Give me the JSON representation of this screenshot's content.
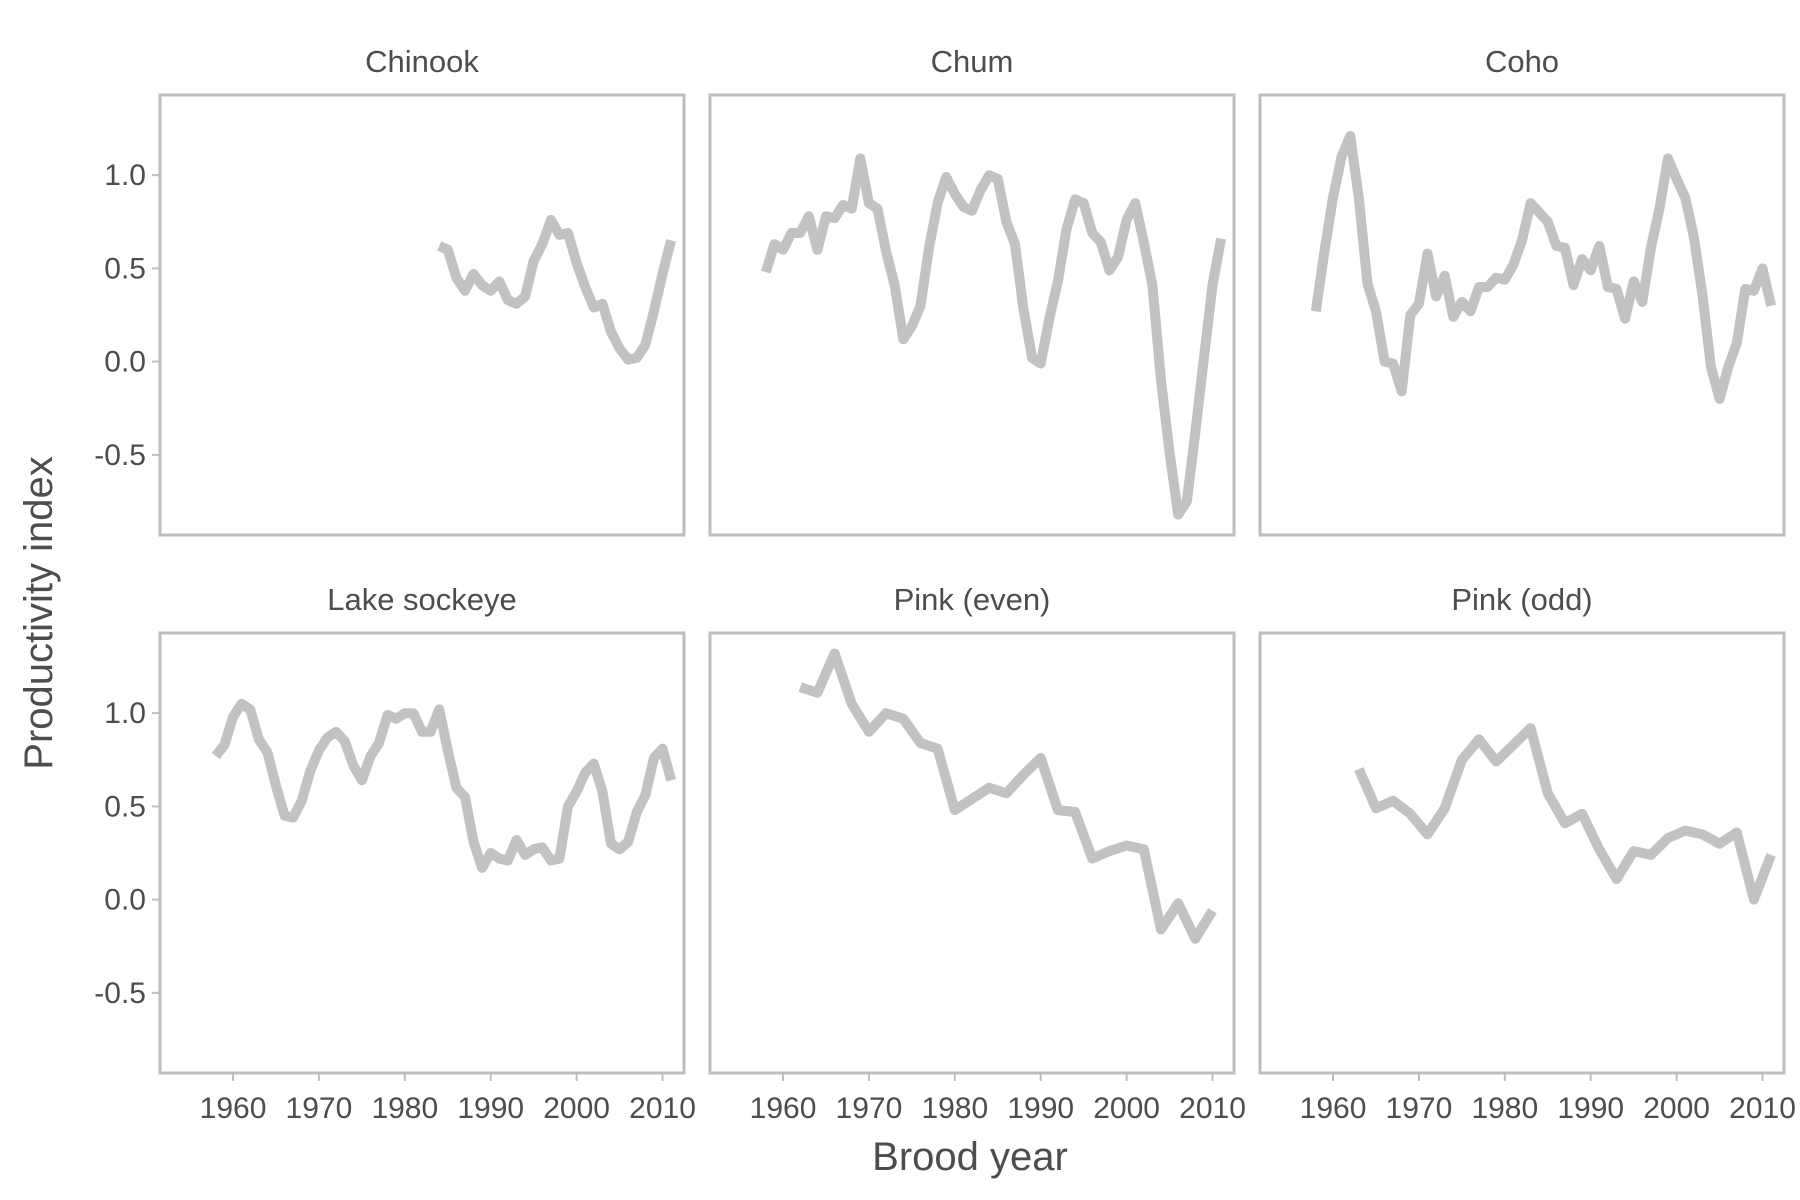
{
  "figure": {
    "xlabel": "Brood year",
    "ylabel": "Productivity index"
  },
  "colors": {
    "line": "#c2c2c2",
    "frame": "#bdbdbd",
    "text": "#4d4d4d"
  },
  "chart_data": [
    {
      "type": "line",
      "title": "Chinook",
      "xlim": [
        1951.5,
        2012.5
      ],
      "ylim": [
        -0.93,
        1.43
      ],
      "xticks": [
        1960,
        1970,
        1980,
        1990,
        2000,
        2010
      ],
      "yticks": [
        -0.5,
        0.0,
        0.5,
        1.0
      ],
      "ytick_labels": [
        "-0.5",
        "0.0",
        "0.5",
        "1.0"
      ],
      "series": [
        {
          "x": [
            1984,
            1985,
            1986,
            1987,
            1988,
            1989,
            1990,
            1991,
            1992,
            1993,
            1994,
            1995,
            1996,
            1997,
            1998,
            1999,
            2000,
            2001,
            2002,
            2003,
            2004,
            2005,
            2006,
            2007,
            2008,
            2009,
            2010,
            2011
          ],
          "y": [
            0.62,
            0.6,
            0.45,
            0.38,
            0.47,
            0.41,
            0.38,
            0.43,
            0.33,
            0.31,
            0.35,
            0.54,
            0.63,
            0.76,
            0.68,
            0.69,
            0.53,
            0.4,
            0.29,
            0.31,
            0.16,
            0.07,
            0.01,
            0.02,
            0.09,
            0.27,
            0.47,
            0.65
          ]
        }
      ]
    },
    {
      "type": "line",
      "title": "Chum",
      "xlim": [
        1951.5,
        2012.5
      ],
      "ylim": [
        -0.93,
        1.43
      ],
      "xticks": [
        1960,
        1970,
        1980,
        1990,
        2000,
        2010
      ],
      "yticks": [
        -0.5,
        0.0,
        0.5,
        1.0
      ],
      "ytick_labels": [
        "-0.5",
        "0.0",
        "0.5",
        "1.0"
      ],
      "series": [
        {
          "x": [
            1958,
            1959,
            1960,
            1961,
            1962,
            1963,
            1964,
            1965,
            1966,
            1967,
            1968,
            1969,
            1970,
            1971,
            1972,
            1973,
            1974,
            1975,
            1976,
            1977,
            1978,
            1979,
            1980,
            1981,
            1982,
            1983,
            1984,
            1985,
            1986,
            1987,
            1988,
            1989,
            1990,
            1991,
            1992,
            1993,
            1994,
            1995,
            1996,
            1997,
            1998,
            1999,
            2000,
            2001,
            2002,
            2003,
            2004,
            2005,
            2006,
            2007,
            2008,
            2009,
            2010,
            2011
          ],
          "y": [
            0.48,
            0.63,
            0.6,
            0.69,
            0.69,
            0.78,
            0.6,
            0.78,
            0.77,
            0.84,
            0.82,
            1.09,
            0.85,
            0.82,
            0.59,
            0.41,
            0.12,
            0.19,
            0.3,
            0.61,
            0.85,
            0.99,
            0.9,
            0.83,
            0.81,
            0.92,
            1.0,
            0.98,
            0.75,
            0.63,
            0.28,
            0.02,
            -0.01,
            0.23,
            0.43,
            0.71,
            0.87,
            0.85,
            0.69,
            0.64,
            0.49,
            0.56,
            0.76,
            0.85,
            0.64,
            0.41,
            -0.1,
            -0.49,
            -0.82,
            -0.75,
            -0.38,
            0.02,
            0.41,
            0.66
          ]
        }
      ]
    },
    {
      "type": "line",
      "title": "Coho",
      "xlim": [
        1951.5,
        2012.5
      ],
      "ylim": [
        -0.93,
        1.43
      ],
      "xticks": [
        1960,
        1970,
        1980,
        1990,
        2000,
        2010
      ],
      "yticks": [
        -0.5,
        0.0,
        0.5,
        1.0
      ],
      "ytick_labels": [
        "-0.5",
        "0.0",
        "0.5",
        "1.0"
      ],
      "series": [
        {
          "x": [
            1958,
            1959,
            1960,
            1961,
            1962,
            1963,
            1964,
            1965,
            1966,
            1967,
            1968,
            1969,
            1970,
            1971,
            1972,
            1973,
            1974,
            1975,
            1976,
            1977,
            1978,
            1979,
            1980,
            1981,
            1982,
            1983,
            1984,
            1985,
            1986,
            1987,
            1988,
            1989,
            1990,
            1991,
            1992,
            1993,
            1994,
            1995,
            1996,
            1997,
            1998,
            1999,
            2000,
            2001,
            2002,
            2003,
            2004,
            2005,
            2006,
            2007,
            2008,
            2009,
            2010,
            2011
          ],
          "y": [
            0.27,
            0.59,
            0.88,
            1.1,
            1.21,
            0.88,
            0.42,
            0.27,
            0.0,
            -0.01,
            -0.16,
            0.25,
            0.31,
            0.58,
            0.35,
            0.46,
            0.24,
            0.32,
            0.27,
            0.4,
            0.4,
            0.45,
            0.44,
            0.52,
            0.65,
            0.85,
            0.8,
            0.75,
            0.62,
            0.61,
            0.41,
            0.55,
            0.49,
            0.62,
            0.4,
            0.39,
            0.23,
            0.43,
            0.32,
            0.61,
            0.82,
            1.09,
            0.98,
            0.88,
            0.67,
            0.36,
            -0.03,
            -0.2,
            -0.03,
            0.1,
            0.39,
            0.38,
            0.5,
            0.3
          ]
        }
      ]
    },
    {
      "type": "line",
      "title": "Lake sockeye",
      "xlim": [
        1951.5,
        2012.5
      ],
      "ylim": [
        -0.93,
        1.43
      ],
      "xticks": [
        1960,
        1970,
        1980,
        1990,
        2000,
        2010
      ],
      "xtick_labels": [
        "1960",
        "1970",
        "1980",
        "1990",
        "2000",
        "2010"
      ],
      "yticks": [
        -0.5,
        0.0,
        0.5,
        1.0
      ],
      "ytick_labels": [
        "-0.5",
        "0.0",
        "0.5",
        "1.0"
      ],
      "series": [
        {
          "x": [
            1958,
            1959,
            1960,
            1961,
            1962,
            1963,
            1964,
            1965,
            1966,
            1967,
            1968,
            1969,
            1970,
            1971,
            1972,
            1973,
            1974,
            1975,
            1976,
            1977,
            1978,
            1979,
            1980,
            1981,
            1982,
            1983,
            1984,
            1985,
            1986,
            1987,
            1988,
            1989,
            1990,
            1991,
            1992,
            1993,
            1994,
            1995,
            1996,
            1997,
            1998,
            1999,
            2000,
            2001,
            2002,
            2003,
            2004,
            2005,
            2006,
            2007,
            2008,
            2009,
            2010,
            2011
          ],
          "y": [
            0.77,
            0.83,
            0.98,
            1.05,
            1.02,
            0.86,
            0.79,
            0.61,
            0.45,
            0.44,
            0.53,
            0.69,
            0.8,
            0.87,
            0.9,
            0.85,
            0.72,
            0.64,
            0.77,
            0.84,
            0.99,
            0.97,
            1.0,
            1.0,
            0.9,
            0.9,
            1.02,
            0.8,
            0.6,
            0.55,
            0.31,
            0.17,
            0.25,
            0.22,
            0.21,
            0.32,
            0.24,
            0.27,
            0.28,
            0.21,
            0.22,
            0.5,
            0.58,
            0.68,
            0.73,
            0.58,
            0.3,
            0.27,
            0.31,
            0.47,
            0.56,
            0.76,
            0.81,
            0.64
          ]
        }
      ]
    },
    {
      "type": "line",
      "title": "Pink (even)",
      "xlim": [
        1951.5,
        2012.5
      ],
      "ylim": [
        -0.93,
        1.43
      ],
      "xticks": [
        1960,
        1970,
        1980,
        1990,
        2000,
        2010
      ],
      "xtick_labels": [
        "1960",
        "1970",
        "1980",
        "1990",
        "2000",
        "2010"
      ],
      "yticks": [
        -0.5,
        0.0,
        0.5,
        1.0
      ],
      "ytick_labels": [
        "-0.5",
        "0.0",
        "0.5",
        "1.0"
      ],
      "series": [
        {
          "x": [
            1962,
            1964,
            1966,
            1968,
            1970,
            1972,
            1974,
            1976,
            1978,
            1980,
            1982,
            1984,
            1986,
            1988,
            1990,
            1992,
            1994,
            1996,
            1998,
            2000,
            2002,
            2004,
            2006,
            2008,
            2010
          ],
          "y": [
            1.14,
            1.11,
            1.32,
            1.05,
            0.9,
            1.0,
            0.97,
            0.84,
            0.81,
            0.48,
            0.54,
            0.6,
            0.57,
            0.67,
            0.76,
            0.48,
            0.47,
            0.22,
            0.26,
            0.29,
            0.27,
            -0.16,
            -0.02,
            -0.21,
            -0.06
          ]
        }
      ]
    },
    {
      "type": "line",
      "title": "Pink (odd)",
      "xlim": [
        1951.5,
        2012.5
      ],
      "ylim": [
        -0.93,
        1.43
      ],
      "xticks": [
        1960,
        1970,
        1980,
        1990,
        2000,
        2010
      ],
      "xtick_labels": [
        "1960",
        "1970",
        "1980",
        "1990",
        "2000",
        "2010"
      ],
      "yticks": [
        -0.5,
        0.0,
        0.5,
        1.0
      ],
      "ytick_labels": [
        "-0.5",
        "0.0",
        "0.5",
        "1.0"
      ],
      "series": [
        {
          "x": [
            1963,
            1965,
            1967,
            1969,
            1971,
            1973,
            1975,
            1977,
            1979,
            1981,
            1983,
            1985,
            1987,
            1989,
            1991,
            1993,
            1995,
            1997,
            1999,
            2001,
            2003,
            2005,
            2007,
            2009,
            2011
          ],
          "y": [
            0.7,
            0.49,
            0.53,
            0.46,
            0.35,
            0.49,
            0.75,
            0.86,
            0.74,
            0.83,
            0.92,
            0.57,
            0.41,
            0.46,
            0.27,
            0.11,
            0.26,
            0.24,
            0.33,
            0.37,
            0.35,
            0.3,
            0.36,
            0.0,
            0.24
          ]
        }
      ]
    }
  ]
}
